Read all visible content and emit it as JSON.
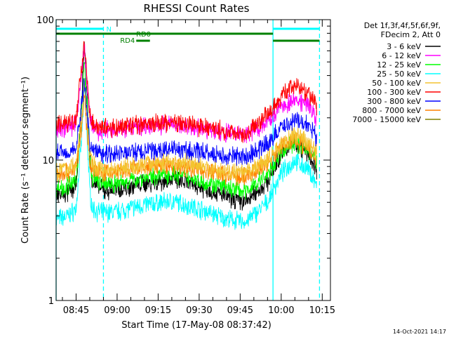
{
  "chart_data": {
    "type": "line",
    "title": "RHESSI Count Rates",
    "xlabel": "Start Time (17-May-08 08:37:42)",
    "ylabel": "Count Rate (s⁻¹ detector segment⁻¹)",
    "y_scale": "log",
    "ylim": [
      1,
      100
    ],
    "y_ticks": [
      {
        "value": 1,
        "label": "1"
      },
      {
        "value": 10,
        "label": "10"
      },
      {
        "value": 100,
        "label": "100"
      }
    ],
    "xlim": [
      "08:37:42",
      "10:18:00"
    ],
    "x_ticks": [
      {
        "value": "08:45",
        "label": "08:45"
      },
      {
        "value": "09:00",
        "label": "09:00"
      },
      {
        "value": "09:15",
        "label": "09:15"
      },
      {
        "value": "09:30",
        "label": "09:30"
      },
      {
        "value": "09:45",
        "label": "09:45"
      },
      {
        "value": "10:00",
        "label": "10:00"
      },
      {
        "value": "10:15",
        "label": "10:15"
      }
    ],
    "legend_header": [
      "Det 1f,3f,4f,5f,6f,9f,",
      "FDecim 2, Att 0"
    ],
    "legend_position": "right",
    "series": [
      {
        "name": "3 - 6 keV",
        "color": "#000000",
        "x": [
          "08:38",
          "08:42",
          "08:45",
          "08:47",
          "08:48",
          "08:49",
          "08:50",
          "08:51",
          "08:53",
          "08:55",
          "09:00",
          "09:10",
          "09:20",
          "09:30",
          "09:40",
          "09:47",
          "09:55",
          "10:00",
          "10:05",
          "10:10",
          "10:13"
        ],
        "y": [
          5.5,
          5.8,
          6.5,
          25,
          70,
          30,
          10,
          7,
          6.5,
          6,
          6.2,
          6.8,
          7.2,
          6.5,
          5.5,
          5,
          7,
          11,
          13.5,
          11,
          8.5
        ]
      },
      {
        "name": "6 - 12 keV",
        "color": "#ff00ff",
        "x": [
          "08:38",
          "08:42",
          "08:45",
          "08:47",
          "08:48",
          "08:49",
          "08:50",
          "08:51",
          "08:53",
          "08:55",
          "09:00",
          "09:10",
          "09:20",
          "09:30",
          "09:40",
          "09:47",
          "09:55",
          "10:00",
          "10:05",
          "10:10",
          "10:13"
        ],
        "y": [
          17,
          17,
          18,
          40,
          65,
          35,
          20,
          17,
          16,
          16,
          16.5,
          17.5,
          18,
          17,
          15.5,
          15,
          19,
          24,
          27,
          25,
          20
        ]
      },
      {
        "name": "12 - 25 keV",
        "color": "#00ff00",
        "x": [
          "08:38",
          "08:42",
          "08:45",
          "08:47",
          "08:48",
          "08:49",
          "08:50",
          "08:51",
          "08:53",
          "08:55",
          "09:00",
          "09:10",
          "09:20",
          "09:30",
          "09:40",
          "09:47",
          "09:55",
          "10:00",
          "10:05",
          "10:10",
          "10:13"
        ],
        "y": [
          6.3,
          6.5,
          7,
          22,
          50,
          25,
          10,
          7.5,
          7,
          6.8,
          6.8,
          7.5,
          8,
          7.2,
          6.3,
          6,
          7.8,
          11.5,
          13.5,
          12,
          9.5
        ]
      },
      {
        "name": "25 - 50 keV",
        "color": "#00ffff",
        "x": [
          "08:38",
          "08:42",
          "08:45",
          "08:47",
          "08:48",
          "08:49",
          "08:50",
          "08:51",
          "08:53",
          "08:55",
          "09:00",
          "09:10",
          "09:20",
          "09:30",
          "09:40",
          "09:47",
          "09:55",
          "10:00",
          "10:05",
          "10:10",
          "10:13"
        ],
        "y": [
          3.8,
          4,
          4.5,
          14,
          33,
          15,
          6,
          4.5,
          4.3,
          4.2,
          4.3,
          4.8,
          5.1,
          4.5,
          3.8,
          3.6,
          5,
          8,
          10,
          8.5,
          6.7
        ]
      },
      {
        "name": "50 - 100 keV",
        "color": "#f4c430",
        "x": [
          "08:38",
          "08:42",
          "08:45",
          "08:47",
          "08:48",
          "08:49",
          "08:50",
          "08:51",
          "08:53",
          "08:55",
          "09:00",
          "09:10",
          "09:20",
          "09:30",
          "09:40",
          "09:47",
          "09:55",
          "10:00",
          "10:05",
          "10:10",
          "10:13"
        ],
        "y": [
          8.5,
          8.7,
          9.2,
          20,
          35,
          20,
          11,
          9.2,
          8.8,
          8.6,
          8.7,
          9.3,
          9.8,
          9.1,
          8.2,
          8,
          10,
          13,
          15,
          13.5,
          11
        ]
      },
      {
        "name": "100 - 300 keV",
        "color": "#ff0000",
        "x": [
          "08:38",
          "08:42",
          "08:45",
          "08:47",
          "08:48",
          "08:49",
          "08:50",
          "08:51",
          "08:53",
          "08:55",
          "09:00",
          "09:10",
          "09:20",
          "09:30",
          "09:40",
          "09:47",
          "09:55",
          "10:00",
          "10:05",
          "10:10",
          "10:13"
        ],
        "y": [
          18,
          18.5,
          19.5,
          45,
          70,
          40,
          22,
          18.5,
          17.5,
          17,
          17,
          18,
          18.5,
          17.5,
          16,
          15.5,
          21,
          29,
          34,
          30,
          24
        ]
      },
      {
        "name": "300 - 800 keV",
        "color": "#0000ff",
        "x": [
          "08:38",
          "08:42",
          "08:45",
          "08:47",
          "08:48",
          "08:49",
          "08:50",
          "08:51",
          "08:53",
          "08:55",
          "09:00",
          "09:10",
          "09:20",
          "09:30",
          "09:40",
          "09:47",
          "09:55",
          "10:00",
          "10:05",
          "10:10",
          "10:13"
        ],
        "y": [
          11.5,
          11.5,
          12,
          25,
          36,
          22,
          13.5,
          12,
          11.5,
          11.3,
          11.2,
          11.5,
          12,
          11.3,
          10.7,
          10.5,
          13,
          17,
          19.5,
          17.5,
          14.5
        ]
      },
      {
        "name": "800 - 7000 keV",
        "color": "#ff8000",
        "x": [
          "08:38",
          "08:42",
          "08:45",
          "08:47",
          "08:48",
          "08:49",
          "08:50",
          "08:51",
          "08:53",
          "08:55",
          "09:00",
          "09:10",
          "09:20",
          "09:30",
          "09:40",
          "09:47",
          "09:55",
          "10:00",
          "10:05",
          "10:10",
          "10:13"
        ],
        "y": [
          8,
          8.2,
          8.7,
          17,
          28,
          17,
          10,
          8.7,
          8.3,
          8.1,
          8.2,
          8.8,
          9.2,
          8.6,
          7.8,
          7.5,
          9.5,
          12.5,
          14,
          12.5,
          10
        ]
      },
      {
        "name": "7000 - 15000 keV",
        "color": "#808000",
        "x": [],
        "y": []
      }
    ],
    "annotations": {
      "attenuator_bars": [
        {
          "label": "N",
          "color": "#00ffff",
          "start": "08:37:42",
          "end": "08:55"
        },
        {
          "label": "",
          "color": "#00ffff",
          "start": "09:57",
          "end": "10:14"
        }
      ],
      "decimation_bars": [
        {
          "label": "RD0",
          "color": "#008000",
          "start": "08:37:42",
          "end": "09:57"
        },
        {
          "label": "RD4",
          "color": "#008000",
          "start": "09:07",
          "end": "09:12"
        },
        {
          "label": "",
          "color": "#008000",
          "start": "09:57",
          "end": "10:14"
        }
      ],
      "vertical_markers": [
        {
          "time": "08:37:42",
          "style": "solid",
          "color": "#00ffff"
        },
        {
          "time": "08:55",
          "style": "dashed",
          "color": "#00ffff"
        },
        {
          "time": "09:57",
          "style": "solid",
          "color": "#00ffff"
        },
        {
          "time": "10:14",
          "style": "dashed",
          "color": "#00ffff"
        }
      ]
    }
  },
  "footer": {
    "timestamp": "14-Oct-2021 14:17"
  }
}
